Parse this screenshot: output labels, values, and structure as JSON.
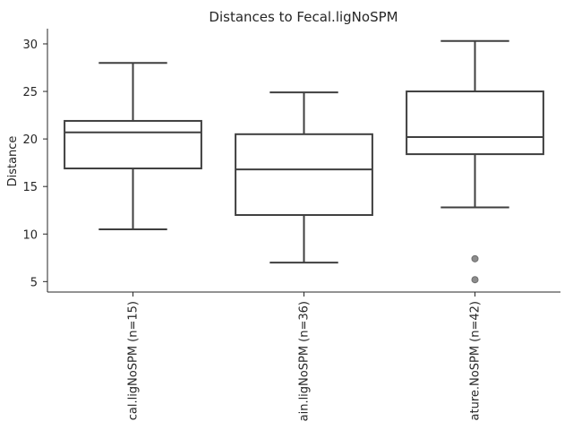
{
  "chart_data": {
    "type": "box",
    "title": "Distances to Fecal.ligNoSPM",
    "xlabel": "",
    "ylabel": "Distance",
    "ylim": [
      3.9,
      31.6
    ],
    "yticks": [
      5,
      10,
      15,
      20,
      25,
      30
    ],
    "grid": false,
    "categories": [
      "cal.ligNoSPM (n=15)",
      "ain.ligNoSPM (n=36)",
      "ature.NoSPM (n=42)"
    ],
    "boxes": [
      {
        "category": "cal.ligNoSPM (n=15)",
        "whisker_low": 10.5,
        "q1": 16.9,
        "median": 20.7,
        "q3": 21.9,
        "whisker_high": 28.0,
        "outliers": []
      },
      {
        "category": "ain.ligNoSPM (n=36)",
        "whisker_low": 7.0,
        "q1": 12.0,
        "median": 16.8,
        "q3": 20.5,
        "whisker_high": 24.9,
        "outliers": []
      },
      {
        "category": "ature.NoSPM (n=42)",
        "whisker_low": 12.8,
        "q1": 18.4,
        "median": 20.2,
        "q3": 25.0,
        "whisker_high": 30.3,
        "outliers": [
          7.4,
          5.2
        ]
      }
    ]
  }
}
